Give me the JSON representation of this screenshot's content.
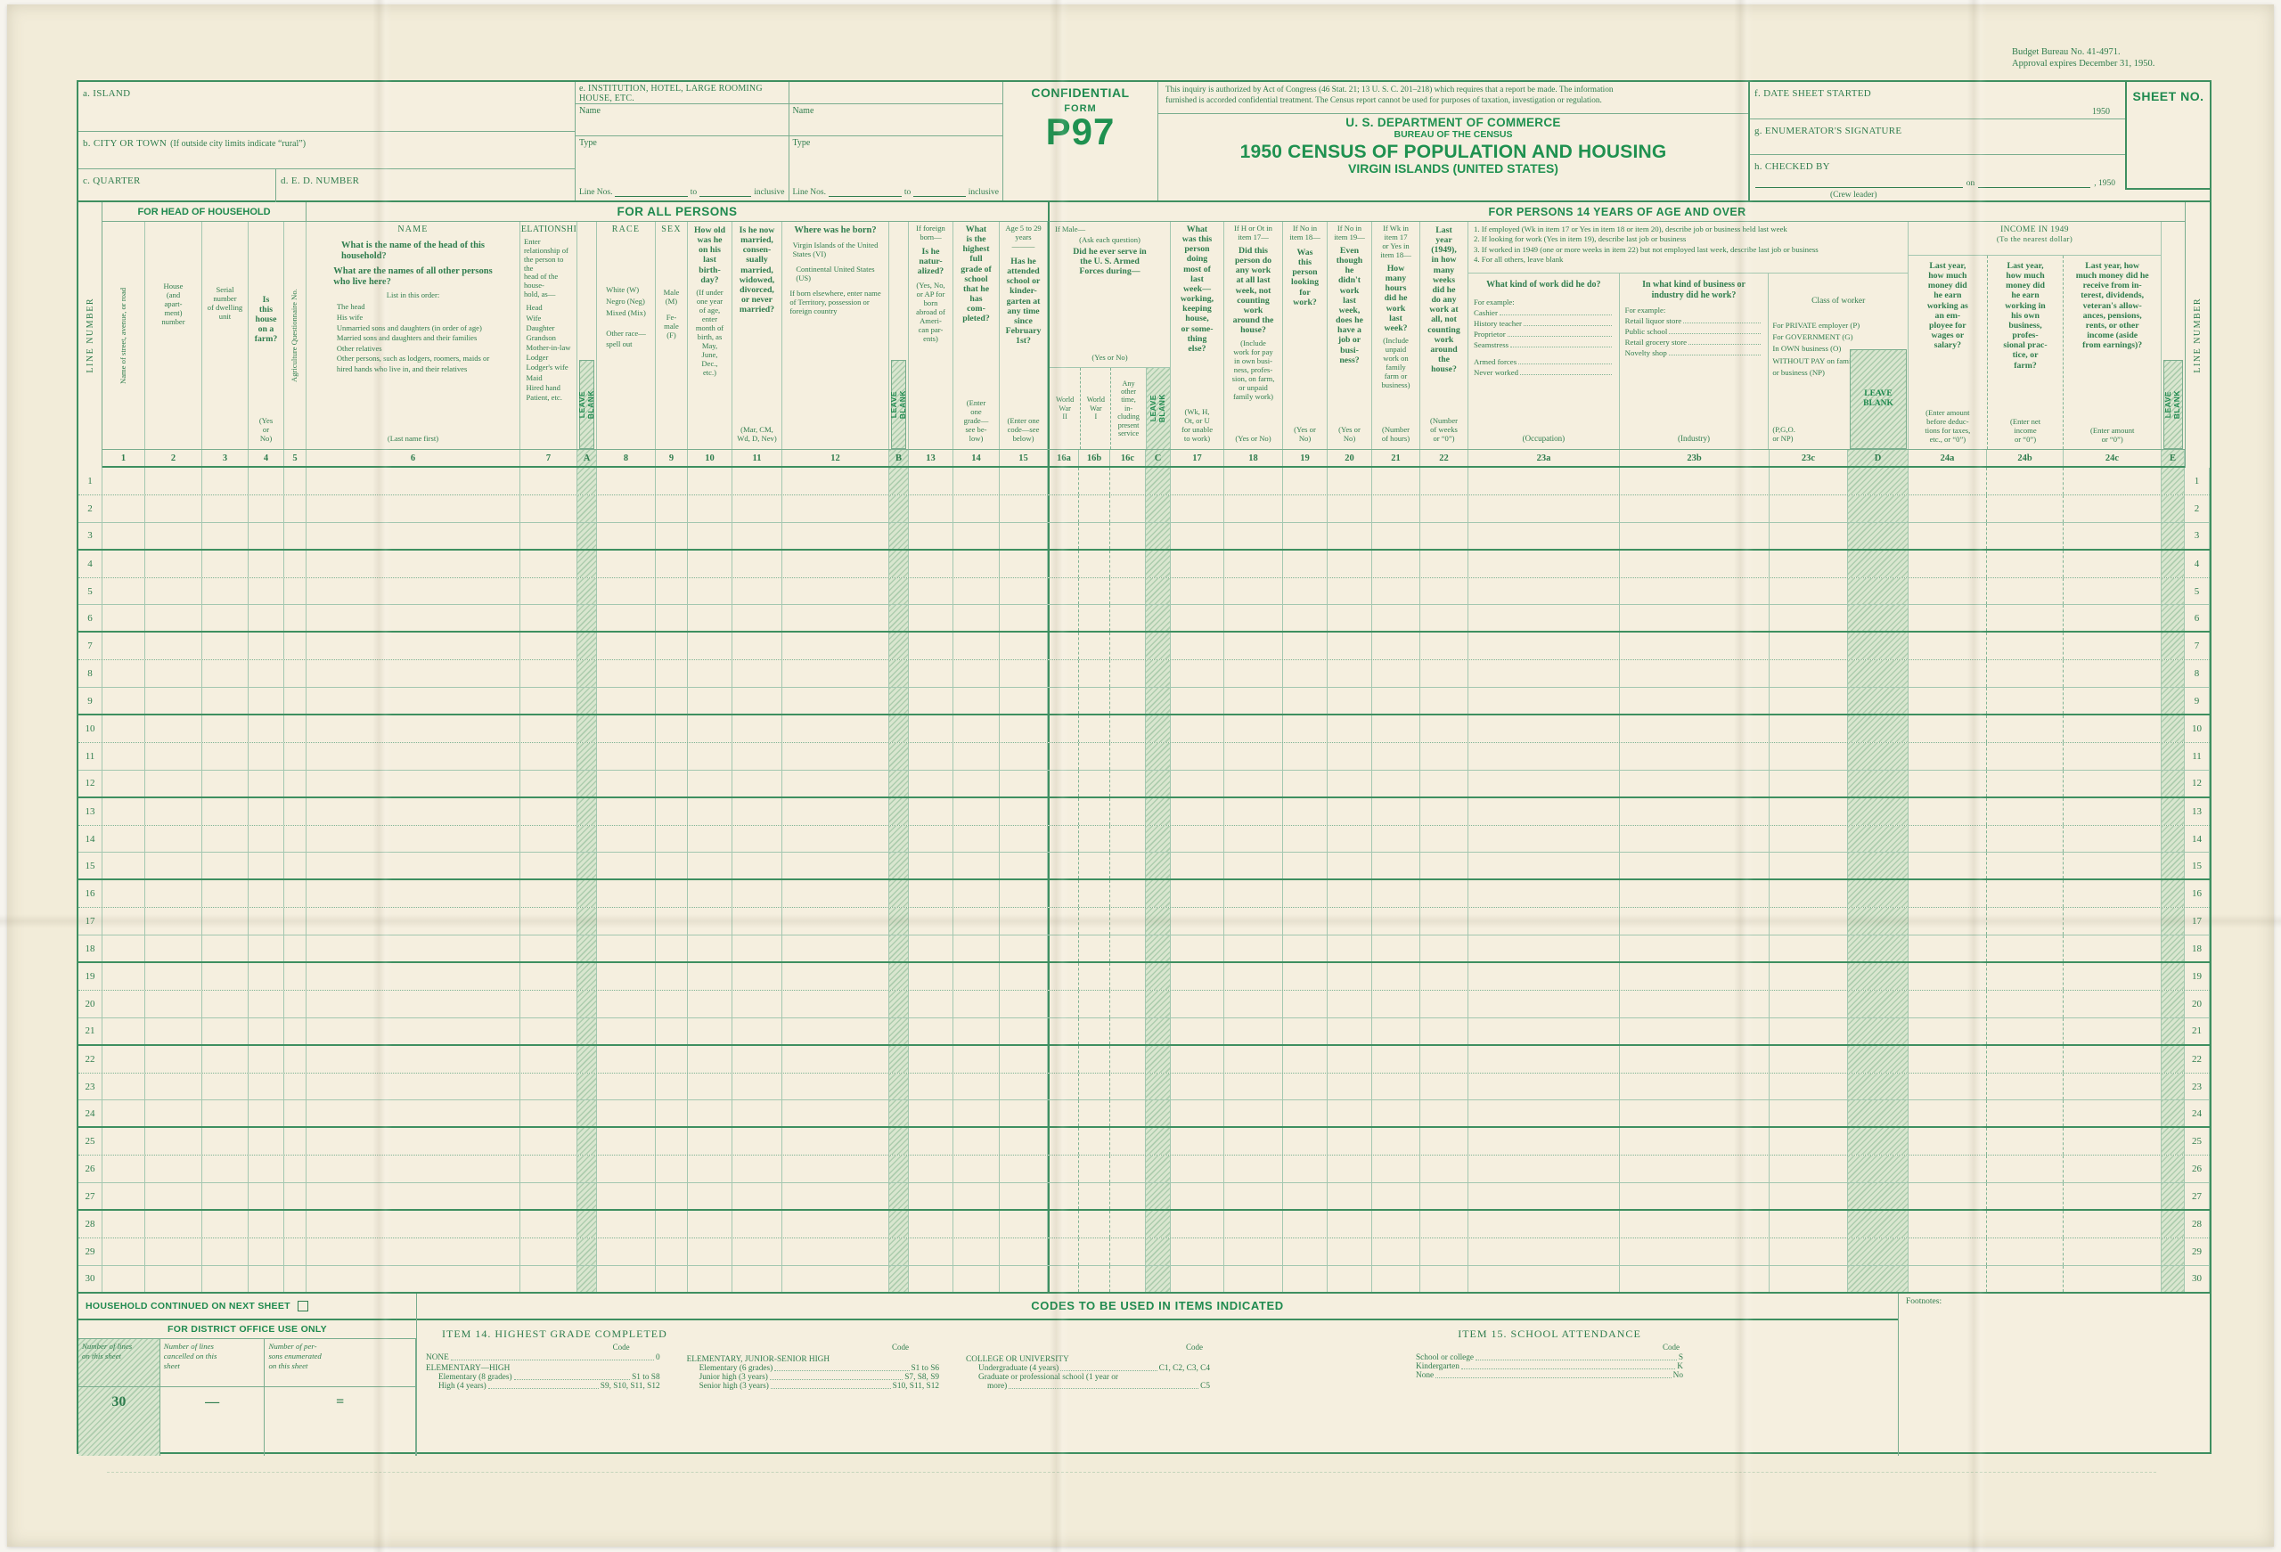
{
  "scan": {
    "budget_line1": "Budget Bureau No. 41-4971.",
    "budget_line2": "Approval expires December 31, 1950."
  },
  "top": {
    "island": "a. ISLAND",
    "city": "b. CITY OR TOWN",
    "city_note": "(If outside city limits indicate “rural”)",
    "quarter": "c. QUARTER",
    "ed": "d. E. D. NUMBER",
    "institution": "e. INSTITUTION, HOTEL, LARGE ROOMING HOUSE, ETC.",
    "name": "Name",
    "type": "Type",
    "line_nos": "Line Nos.",
    "to": "to",
    "inclusive": "inclusive",
    "confidential": "CONFIDENTIAL",
    "form_word": "FORM",
    "form_no": "P97",
    "auth": "This inquiry is authorized by Act of Congress (46 Stat. 21; 13 U. S. C. 201–218) which requires that a report be made.  The information\nfurnished is accorded confidential treatment.  The Census report cannot be used for purposes of taxation, investigation or regulation.",
    "dept": "U. S. DEPARTMENT OF COMMERCE",
    "bureau": "BUREAU OF THE CENSUS",
    "title": "1950 CENSUS OF POPULATION AND HOUSING",
    "subtitle": "VIRGIN ISLANDS (UNITED STATES)",
    "date_started": "f. DATE SHEET STARTED",
    "year": "1950",
    "enumerator": "g. ENUMERATOR'S SIGNATURE",
    "checked_by": "h. CHECKED BY",
    "crew_leader": "(Crew leader)",
    "on_word": "on",
    "year_suffix": ", 1950",
    "sheet_no": "SHEET NO."
  },
  "sections": {
    "s1": "FOR HEAD OF HOUSEHOLD",
    "s2": "FOR ALL PERSONS",
    "s3": "FOR PERSONS 14 YEARS OF AGE AND OVER"
  },
  "labels": {
    "line_number": "LINE NUMBER",
    "leave_blank": "LEAVE\nBLANK"
  },
  "cols": {
    "street": "Name of street, avenue, or road",
    "house": "House\n(and\napart-\nment)\nnumber",
    "serial": "Serial\nnumber\nof dwelling\nunit",
    "farm_q": "Is\nthis\nhouse\non a\nfarm?",
    "farm_note": "(Yes\nor\nNo)",
    "agri": "Agriculture Questionnaire No.",
    "name_title": "NAME",
    "name_q1": "What is the name of the head of this\n  household?",
    "name_q2": "What are the names of all other persons\n  who live here?",
    "name_intro": "List in this order:",
    "name_items": "The head\nHis wife\nUnmarried sons and daughters (in order of age)\nMarried sons and daughters and their families\nOther relatives\nOther persons, such as lodgers, roomers, maids or\n  hired hands who live in, and their relatives",
    "name_foot": "(Last name first)",
    "rel_title": "RELATIONSHIP",
    "rel_intro": "Enter relationship of\nthe person to the\nhead of the house-\nhold, as—",
    "rel_items": "Head\nWife\nDaughter\nGrandson\nMother-in-law\nLodger\nLodger's wife\nMaid\nHired hand\nPatient, etc.",
    "race_title": "RACE",
    "race_items": "White (W)\nNegro (Neg)\nMixed (Mix)",
    "race_other": "Other race—\nspell out",
    "sex_title": "SEX",
    "sex_m": "Male\n(M)",
    "sex_f": "Fe-\nmale\n(F)",
    "age_q": "How old\nwas he\non his\nlast\nbirth-\nday?",
    "age_note": "(If under\none year\nof age,\nenter\nmonth of\nbirth, as\nMay,\nJune,\nDec.,\netc.)",
    "mar_q": "Is he now\nmarried,\nconsen-\nsually\nmarried,\nwidowed,\ndivorced,\nor never\nmarried?",
    "mar_note": "(Mar, CM,\nWd, D, Nev)",
    "born_q": "Where was he born?",
    "born_b1": "Virgin Islands of the United\n  States (VI)",
    "born_b2": "Continental United States\n  (US)",
    "born_b3": "If born elsewhere, enter name\n  of Territory, possession or\n  foreign country",
    "nat_pre": "If foreign\nborn—",
    "nat_q": "Is he\nnatur-\nalized?",
    "nat_note": "(Yes, No,\nor AP for\nborn\nabroad of\nAmeri-\ncan par-\nents)",
    "grade_q": "What\nis the\nhighest\nfull\ngrade of\nschool\nthat he\nhas\ncom-\npleted?",
    "grade_note": "(Enter\none\ngrade—\nsee be-\nlow)",
    "att_pre": "Age 5 to 29\nyears\n———",
    "att_q": "Has he\nattended\nschool or\nkinder-\ngarten at\nany time\nsince\nFebruary\n1st?",
    "att_note": "(Enter one\ncode—see\nbelow)",
    "vet_pre": "If Male—",
    "vet_ask": "(Ask each question)",
    "vet_q": "Did he ever serve in\nthe U. S. Armed\nForces during—",
    "vet_yn": "(Yes or No)",
    "vet_a": "World\nWar\nII",
    "vet_b": "World\nWar\nI",
    "vet_c": "Any\nother\ntime,\nin-\ncluding\npresent\nservice",
    "doing_q": "What\nwas this\nperson\ndoing\nmost of\nlast\nweek—\nworking,\nkeeping\nhouse,\nor some-\nthing\nelse?",
    "doing_note": "(Wk, H,\nOt, or U\nfor unable\nto work)",
    "work_pre": "If H or Ot in\nitem 17—",
    "work_q": "Did this\nperson do\nany work\nat all last\nweek, not\ncounting\nwork\naround the\nhouse?",
    "work_note": "(Include\nwork for pay\nin own busi-\nness, profes-\nsion, on farm,\nor unpaid\nfamily work)",
    "work_yn": "(Yes or No)",
    "look_pre": "If No in\nitem 18—",
    "look_q": "Was\nthis\nperson\nlooking\nfor\nwork?",
    "look_yn": "(Yes or\nNo)",
    "job_pre": "If No in\nitem 19—",
    "job_q": "Even\nthough\nhe\ndidn't\nwork\nlast\nweek,\ndoes he\nhave a\njob or\nbusi-\nness?",
    "job_yn": "(Yes or\nNo)",
    "hours_pre": "If Wk in\nitem 17\nor Yes in\nitem 18—",
    "hours_q": "How\nmany\nhours\ndid he\nwork\nlast\nweek?",
    "hours_note": "(Include\nunpaid\nwork on\nfamily\nfarm or\nbusiness)",
    "hours_unit": "(Number\nof hours)",
    "weeks_q": "Last\nyear\n(1949),\nin how\nmany\nweeks\ndid he\ndo any\nwork at\nall, not\ncounting\nwork\naround\nthe\nhouse?",
    "weeks_unit": "(Number\nof weeks\nor “0”)"
  },
  "job": {
    "i1": "1. If employed (Wk in item 17 or Yes in item 18 or item 20), describe job or business held last week",
    "i2": "2. If looking for work (Yes in item 19), describe last job or business",
    "i3": "3. If worked in 1949 (one or more weeks in item 22) but not employed last week, describe last job or business",
    "i4": "4. For all others, leave blank",
    "occ_q": "What kind of work did he do?",
    "eg": "For example:",
    "occ_items": [
      "Cashier",
      "History teacher",
      "Proprietor",
      "Seamstress",
      "Armed forces",
      "Never worked"
    ],
    "occ_foot": "(Occupation)",
    "ind_q": "In what kind of business or\nindustry did he work?",
    "ind_items": [
      "Retail liquor store",
      "Public school",
      "Retail grocery store",
      "Novelty shop"
    ],
    "ind_foot": "(Industry)",
    "cow_title": "Class of worker",
    "cow_items": "For PRIVATE employer (P)\nFor GOVERNMENT (G)\nIn OWN business (O)\nWITHOUT PAY on family farm\n  or business (NP)",
    "cow_foot": "(P,G,O.\nor NP)"
  },
  "income": {
    "title": "INCOME IN 1949",
    "sub": "(To the nearest dollar)",
    "a_q": "Last year,\nhow much\nmoney did\nhe earn\nworking as\nan em-\nployee for\nwages or\nsalary?",
    "a_note": "(Enter amount\nbefore deduc-\ntions for taxes,\netc., or “0”)",
    "b_q": "Last year,\nhow much\nmoney did\nhe earn\nworking in\nhis own\nbusiness,\nprofes-\nsional prac-\ntice, or\nfarm?",
    "b_note": "(Enter net\nincome\nor “0”)",
    "c_q": "Last year, how\nmuch money did he\nreceive from in-\nterest, dividends,\nveteran's allow-\nances, pensions,\nrents, or other\nincome (aside\nfrom earnings)?",
    "c_note": "(Enter amount\nor “0”)"
  },
  "table": {
    "column_numbers": [
      "1",
      "2",
      "3",
      "4",
      "5",
      "6",
      "7",
      "A",
      "8",
      "9",
      "10",
      "11",
      "12",
      "B",
      "13",
      "14",
      "15",
      "16a",
      "16b",
      "16c",
      "C",
      "17",
      "18",
      "19",
      "20",
      "21",
      "22",
      "23a",
      "23b",
      "23c",
      "D",
      "24a",
      "24b",
      "24c",
      "E"
    ],
    "row_numbers": [
      "1",
      "2",
      "3",
      "4",
      "5",
      "6",
      "7",
      "8",
      "9",
      "10",
      "11",
      "12",
      "13",
      "14",
      "15",
      "16",
      "17",
      "18",
      "19",
      "20",
      "21",
      "22",
      "23",
      "24",
      "25",
      "26",
      "27",
      "28",
      "29",
      "30"
    ]
  },
  "footer": {
    "household_continued": "HOUSEHOLD CONTINUED ON NEXT SHEET",
    "codes_title": "CODES TO BE USED IN ITEMS INDICATED",
    "footnotes": "Footnotes:",
    "district_title": "FOR DISTRICT OFFICE USE ONLY",
    "d_h1": "Number of lines\non this sheet",
    "d_h2": "Number of lines\ncancelled on this\nsheet",
    "d_h3": "Number of per-\nsons enumerated\non this sheet",
    "d_v1": "30",
    "d_v2": "—",
    "d_v3": "=",
    "item14_title": "ITEM 14. HIGHEST GRADE COMPLETED",
    "code": "Code",
    "i14_none": "NONE",
    "i14_none_code": "0",
    "i14_g1_head": "ELEMENTARY—HIGH",
    "i14_g1_r1": "Elementary (8 grades)",
    "i14_g1_c1": "S1 to S8",
    "i14_g1_r2": "High (4 years)",
    "i14_g1_c2": "S9, S10, S11, S12",
    "i14_g2_head": "ELEMENTARY, JUNIOR-SENIOR HIGH",
    "i14_g2_r1": "Elementary (6 grades)",
    "i14_g2_c1": "S1 to S6",
    "i14_g2_r2": "Junior high (3 years)",
    "i14_g2_c2": "S7, S8, S9",
    "i14_g2_r3": "Senior high (3 years)",
    "i14_g2_c3": "S10, S11, S12",
    "i14_g3_head": "COLLEGE OR UNIVERSITY",
    "i14_g3_r1": "Undergraduate (4 years)",
    "i14_g3_c1": "C1, C2, C3, C4",
    "i14_g3_r2a": "Graduate or professional school (1 year or",
    "i14_g3_r2b": "more)",
    "i14_g3_c2": "C5",
    "item15_title": "ITEM 15. SCHOOL ATTENDANCE",
    "i15_r1": "School or college",
    "i15_c1": "S",
    "i15_r2": "Kindergarten",
    "i15_c2": "K",
    "i15_r3": "None",
    "i15_c3": "No"
  }
}
